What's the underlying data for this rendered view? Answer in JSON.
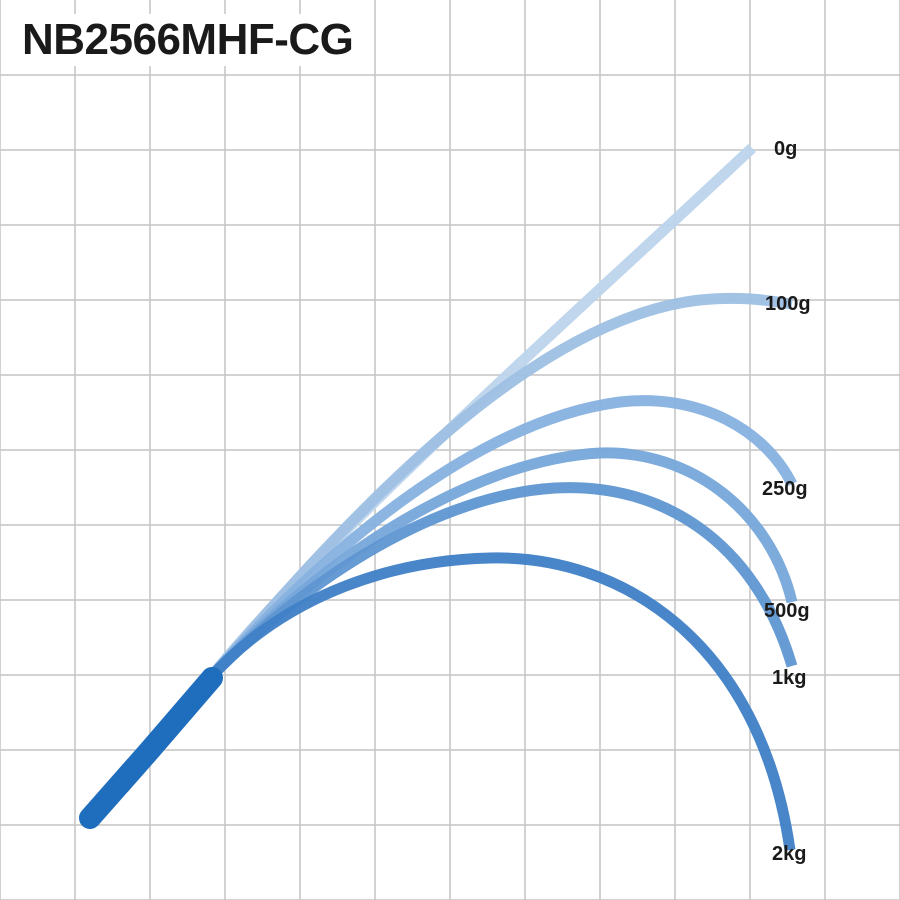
{
  "title": "NB2566MHF-CG",
  "colors": {
    "grid": "#c4c4c4",
    "rod_base": "#1f6dbd",
    "curves": [
      "#bcd4ec",
      "#9ec0e4",
      "#87b1df",
      "#76a6da",
      "#5f96d1",
      "#3e7fc6"
    ]
  },
  "loads": [
    {
      "label": "0g"
    },
    {
      "label": "100g"
    },
    {
      "label": "250g"
    },
    {
      "label": "500g"
    },
    {
      "label": "1kg"
    },
    {
      "label": "2kg"
    }
  ]
}
